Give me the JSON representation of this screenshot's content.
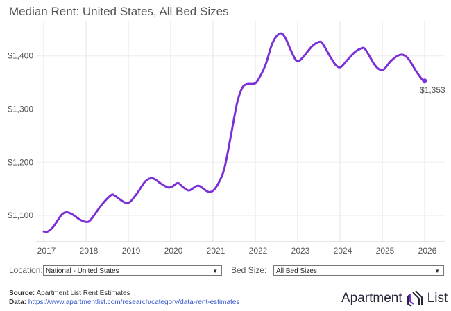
{
  "title": "Median Rent: United States, All Bed Sizes",
  "chart_data": {
    "type": "line",
    "title": "Median Rent: United States, All Bed Sizes",
    "xlabel": "",
    "ylabel": "",
    "xlim": [
      2017,
      2026
    ],
    "ylim": [
      1050,
      1460
    ],
    "grid": true,
    "x_ticks": [
      "2017",
      "2018",
      "2019",
      "2020",
      "2021",
      "2022",
      "2023",
      "2024",
      "2025",
      "2026"
    ],
    "y_ticks": [
      {
        "value": 1100,
        "label": "$1,100"
      },
      {
        "value": 1200,
        "label": "$1,200"
      },
      {
        "value": 1300,
        "label": "$1,300"
      },
      {
        "value": 1400,
        "label": "$1,400"
      }
    ],
    "line_color": "#7b2fd6",
    "end_label": "$1,353",
    "x": [
      2017.0,
      2017.1,
      2017.23,
      2017.42,
      2017.55,
      2017.7,
      2017.86,
      2018.0,
      2018.11,
      2018.37,
      2018.59,
      2018.68,
      2018.9,
      2019.03,
      2019.21,
      2019.4,
      2019.57,
      2019.75,
      2019.92,
      2020.03,
      2020.17,
      2020.28,
      2020.43,
      2020.6,
      2020.69,
      2020.83,
      2020.94,
      2021.08,
      2021.26,
      2021.42,
      2021.57,
      2021.69,
      2021.8,
      2021.98,
      2022.08,
      2022.24,
      2022.41,
      2022.58,
      2022.7,
      2022.87,
      2022.99,
      2023.12,
      2023.34,
      2023.5,
      2023.59,
      2023.78,
      2023.91,
      2024.02,
      2024.16,
      2024.35,
      2024.51,
      2024.6,
      2024.82,
      2024.95,
      2025.04,
      2025.2,
      2025.36,
      2025.49,
      2025.62,
      2025.81,
      2025.95,
      2026.0
    ],
    "y": [
      1070,
      1070,
      1079,
      1101,
      1106,
      1101,
      1092,
      1088,
      1092,
      1120,
      1138,
      1137,
      1125,
      1125,
      1142,
      1164,
      1170,
      1161,
      1153,
      1154,
      1161,
      1154,
      1147,
      1155,
      1155,
      1147,
      1144,
      1154,
      1186,
      1249,
      1312,
      1340,
      1347,
      1348,
      1357,
      1383,
      1425,
      1442,
      1435,
      1405,
      1390,
      1397,
      1418,
      1426,
      1423,
      1397,
      1382,
      1379,
      1391,
      1407,
      1414,
      1412,
      1383,
      1374,
      1375,
      1390,
      1400,
      1402,
      1394,
      1370,
      1355,
      1353
    ]
  },
  "controls": {
    "location_label": "Location:",
    "location_value": "National - United States",
    "bed_label": "Bed Size:",
    "bed_value": "All Bed Sizes",
    "dropdown_icon": "triangle-down"
  },
  "footer": {
    "source_label": "Source:",
    "source_text": "Apartment List Rent Estimates",
    "data_label": "Data:",
    "data_link": "https://www.apartmentlist.com/research/category/data-rent-estimates"
  },
  "logo": {
    "text_left": "Apartment",
    "text_right": "List",
    "accent": "#7b2fd6"
  }
}
